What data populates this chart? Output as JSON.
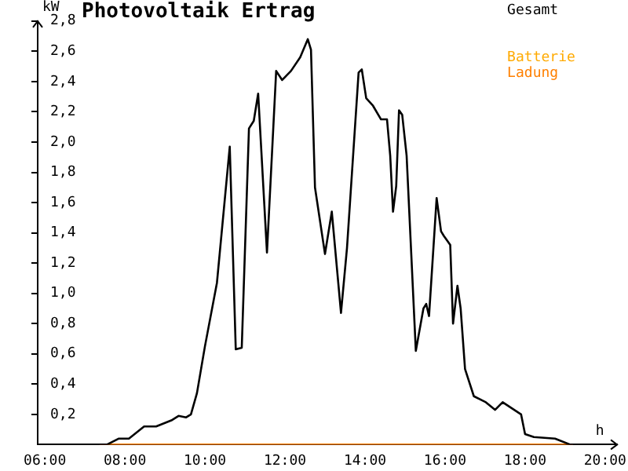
{
  "chart_data": {
    "type": "line",
    "title": "Photovoltaik Ertrag",
    "ylabel": "kW",
    "xlabel": "h",
    "xlim": [
      5.82,
      20.3
    ],
    "xticks": [
      {
        "value": 6,
        "label": "06:00"
      },
      {
        "value": 8,
        "label": "08:00"
      },
      {
        "value": 10,
        "label": "10:00"
      },
      {
        "value": 12,
        "label": "12:00"
      },
      {
        "value": 14,
        "label": "14:00"
      },
      {
        "value": 16,
        "label": "16:00"
      },
      {
        "value": 18,
        "label": "18:00"
      },
      {
        "value": 20,
        "label": "20:00"
      }
    ],
    "ylim": [
      0,
      2.8
    ],
    "yticks": [
      {
        "value": 0.2,
        "label": "0,2"
      },
      {
        "value": 0.4,
        "label": "0,4"
      },
      {
        "value": 0.6,
        "label": "0,6"
      },
      {
        "value": 0.8,
        "label": "0,8"
      },
      {
        "value": 1.0,
        "label": "1,0"
      },
      {
        "value": 1.2,
        "label": "1,2"
      },
      {
        "value": 1.4,
        "label": "1,4"
      },
      {
        "value": 1.6,
        "label": "1,6"
      },
      {
        "value": 1.8,
        "label": "1,8"
      },
      {
        "value": 2.0,
        "label": "2,0"
      },
      {
        "value": 2.2,
        "label": "2,2"
      },
      {
        "value": 2.4,
        "label": "2,4"
      },
      {
        "value": 2.6,
        "label": "2,6"
      },
      {
        "value": 2.8,
        "label": "2,8"
      }
    ],
    "legend": "top right",
    "marker": "none",
    "line_style": "solid",
    "series": [
      {
        "name": "Gesamt",
        "color": "#000000",
        "x": [
          5.82,
          7.55,
          7.85,
          8.1,
          8.48,
          8.78,
          9.16,
          9.34,
          9.53,
          9.65,
          9.8,
          10.0,
          10.3,
          10.62,
          10.77,
          10.92,
          11.1,
          11.22,
          11.33,
          11.55,
          11.78,
          11.93,
          12.15,
          12.38,
          12.57,
          12.65,
          12.75,
          13.0,
          13.17,
          13.4,
          13.55,
          13.84,
          13.92,
          14.03,
          14.2,
          14.4,
          14.55,
          14.63,
          14.7,
          14.78,
          14.85,
          14.93,
          15.04,
          15.27,
          15.46,
          15.53,
          15.6,
          15.79,
          15.9,
          15.97,
          16.13,
          16.2,
          16.31,
          16.39,
          16.5,
          16.72,
          17.02,
          17.25,
          17.44,
          17.67,
          17.9,
          18.0,
          18.22,
          18.75,
          19.13,
          20.24
        ],
        "values": [
          0,
          0,
          0.04,
          0.04,
          0.12,
          0.12,
          0.16,
          0.19,
          0.18,
          0.2,
          0.34,
          0.65,
          1.07,
          1.97,
          0.63,
          0.64,
          2.09,
          2.14,
          2.32,
          1.27,
          2.47,
          2.41,
          2.47,
          2.56,
          2.68,
          2.61,
          1.7,
          1.26,
          1.54,
          0.87,
          1.3,
          2.46,
          2.48,
          2.29,
          2.24,
          2.15,
          2.15,
          1.91,
          1.54,
          1.71,
          2.21,
          2.18,
          1.91,
          0.62,
          0.9,
          0.93,
          0.85,
          1.63,
          1.41,
          1.38,
          1.32,
          0.8,
          1.05,
          0.9,
          0.5,
          0.32,
          0.28,
          0.23,
          0.28,
          0.24,
          0.2,
          0.07,
          0.05,
          0.04,
          0,
          0
        ]
      },
      {
        "name": "Batterie",
        "color": "#ffaa00"
      },
      {
        "name": "Ladung",
        "color": "#ff8000",
        "x": [
          7.36,
          19.2
        ],
        "values": [
          0,
          0
        ]
      }
    ]
  }
}
